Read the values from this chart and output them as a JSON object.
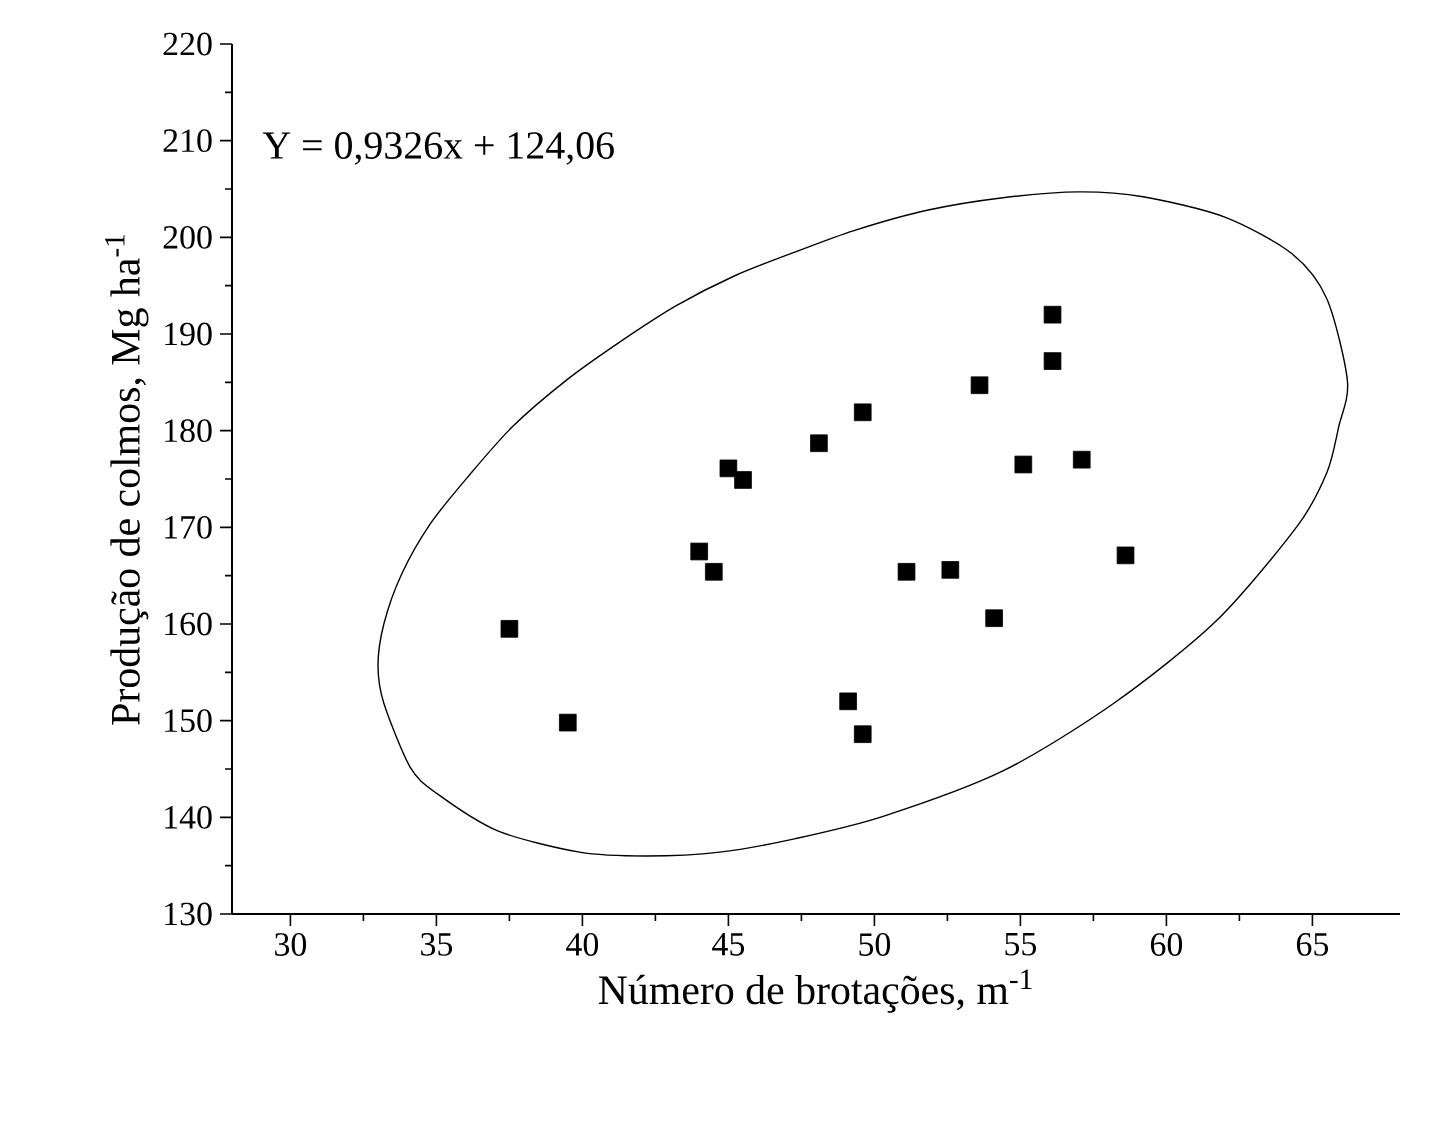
{
  "chart_data": {
    "type": "scatter",
    "xlabel": "Número de brotações, m$^{-1}$",
    "ylabel": "Produção de colmos, Mg ha$^{-1}$",
    "annotations": [
      "Y = 0,9326x + 124,06"
    ],
    "xlim": [
      28,
      68
    ],
    "xticks": [
      30,
      35,
      40,
      45,
      50,
      55,
      60,
      65
    ],
    "ylim": [
      130,
      220
    ],
    "yticks": [
      130,
      140,
      150,
      160,
      170,
      180,
      190,
      200,
      210,
      220
    ],
    "series": [
      {
        "marker": "square",
        "color": "#000000",
        "x": [
          37.5,
          39.5,
          44.0,
          44.5,
          45.0,
          45.5,
          48.1,
          49.1,
          49.6,
          49.6,
          51.1,
          52.6,
          53.6,
          54.1,
          55.1,
          56.1,
          56.1,
          57.1,
          58.6
        ],
        "values": [
          159.5,
          149.8,
          167.5,
          165.4,
          176.1,
          174.9,
          178.7,
          152.0,
          148.6,
          181.9,
          165.4,
          165.6,
          184.7,
          160.6,
          176.5,
          192.0,
          187.2,
          177.0,
          167.1
        ]
      }
    ]
  }
}
